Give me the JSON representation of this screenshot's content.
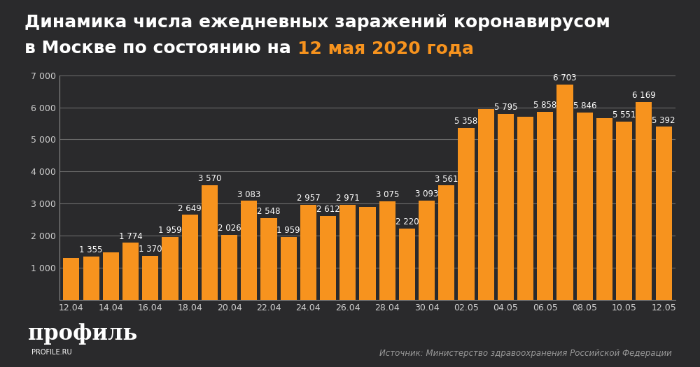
{
  "chart_data": {
    "type": "bar",
    "title": "Динамика числа ежедневных заражений коронавирусом в Москве по состоянию на",
    "title_date": "12 мая 2020 года",
    "categories": [
      "12.04",
      null,
      "14.04",
      null,
      "16.04",
      null,
      "18.04",
      null,
      "20.04",
      null,
      "22.04",
      null,
      "24.04",
      null,
      "26.04",
      null,
      "28.04",
      null,
      "30.04",
      null,
      "02.05",
      null,
      "04.05",
      null,
      "06.05",
      null,
      "08.05",
      null,
      "10.05",
      null,
      "12.05"
    ],
    "values": [
      1300,
      1355,
      1480,
      1774,
      1370,
      1959,
      2649,
      3570,
      2026,
      3083,
      2548,
      1959,
      2957,
      2612,
      2971,
      2900,
      3075,
      2220,
      3093,
      3561,
      5358,
      5950,
      5795,
      5700,
      5858,
      6703,
      5846,
      5660,
      5551,
      6169,
      5392
    ],
    "value_labels": [
      null,
      "1 355",
      null,
      "1 774",
      "1 370",
      "1 959",
      "2 649",
      "3 570",
      "2 026",
      "3 083",
      "2 548",
      "1 959",
      "2 957",
      "2 612",
      "2 971",
      null,
      "3 075",
      "2 220",
      "3 093",
      "3 561",
      "5 358",
      null,
      "5 795",
      null,
      "5 858",
      "6 703",
      "5 846",
      null,
      "5 551",
      "6 169",
      "5 392"
    ],
    "data_labels": true,
    "color": "#f7931e",
    "ylim": [
      0,
      7000
    ],
    "yticks": [
      {
        "value": 1000,
        "label": "1 000"
      },
      {
        "value": 2000,
        "label": "2 000"
      },
      {
        "value": 3000,
        "label": "3 000"
      },
      {
        "value": 4000,
        "label": "4 000"
      },
      {
        "value": 5000,
        "label": "5 000"
      },
      {
        "value": 6000,
        "label": "6 000"
      },
      {
        "value": 7000,
        "label": "7 000"
      }
    ],
    "grid": true,
    "annotations": [
      "профиль",
      "PROFILE.RU",
      "Источник: Министерство здравоохранения Российской Федерации"
    ]
  }
}
